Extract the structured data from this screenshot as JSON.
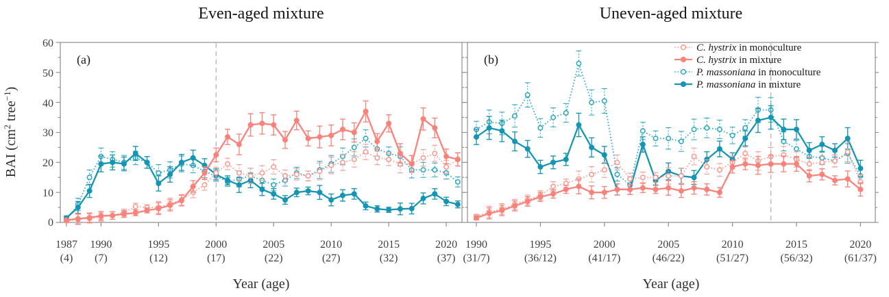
{
  "page": {
    "background": "#ffffff"
  },
  "axes": {
    "y_label": "BAI (cm² tree⁻¹)",
    "y_label_parts": {
      "pre": "BAI (cm",
      "sup1": "2",
      "mid": " tree",
      "sup2": "−1",
      "post": ")"
    },
    "x_label": "Year (age)",
    "y_ticks": [
      0,
      10,
      20,
      30,
      40,
      50,
      60
    ],
    "y_minor_step": 5
  },
  "colors": {
    "salmon_solid": "#F9827A",
    "salmon_open": "#FA9A90",
    "teal_solid": "#1694B4",
    "teal_open": "#2FA9C4",
    "guide_dash": "#b4b4b4",
    "frame": "#8c8c8c",
    "tick_text": "#3f3f3f"
  },
  "legend": {
    "items": [
      {
        "species": "C. hystrix",
        "rest": " in monoculture",
        "color_key": "salmon_open",
        "marker": "open",
        "line": "dotted"
      },
      {
        "species": "C. hystrix",
        "rest": " in mixture",
        "color_key": "salmon_solid",
        "marker": "filled",
        "line": "solid"
      },
      {
        "species": "P. massoniana",
        "rest": " in monoculture",
        "color_key": "teal_open",
        "marker": "open",
        "line": "dotted"
      },
      {
        "species": "P. massoniana",
        "rest": " in mixture",
        "color_key": "teal_solid",
        "marker": "filled",
        "line": "solid"
      }
    ]
  },
  "chart_data": [
    {
      "type": "line",
      "panel_label": "(a)",
      "title": "Even-aged mixture",
      "ylim": [
        0,
        60
      ],
      "grid": false,
      "guide_line_year": 2000,
      "error_bars": "shown, approx ±0.5–4 cm² tree⁻¹",
      "x": [
        1987,
        1988,
        1989,
        1990,
        1991,
        1992,
        1993,
        1994,
        1995,
        1996,
        1997,
        1998,
        1999,
        2000,
        2001,
        2002,
        2003,
        2004,
        2005,
        2006,
        2007,
        2008,
        2009,
        2010,
        2011,
        2012,
        2013,
        2014,
        2015,
        2016,
        2017,
        2018,
        2019,
        2020,
        2021
      ],
      "x_ticks": [
        {
          "year": "1987",
          "age": "(4)"
        },
        {
          "year": "1990",
          "age": "(7)"
        },
        {
          "year": "1995",
          "age": "(12)"
        },
        {
          "year": "2000",
          "age": "(17)"
        },
        {
          "year": "2005",
          "age": "(22)"
        },
        {
          "year": "2010",
          "age": "(27)"
        },
        {
          "year": "2015",
          "age": "(32)"
        },
        {
          "year": "2020",
          "age": "(37)"
        }
      ],
      "series": [
        {
          "name": "P. massoniana in monoculture",
          "color_key": "teal_open",
          "marker": "open",
          "line": "dotted",
          "values": [
            1,
            6,
            15,
            22,
            21,
            20,
            21.5,
            20,
            16.5,
            17.5,
            19.5,
            19,
            17,
            15.5,
            13.5,
            14.5,
            15.5,
            14,
            12.5,
            14,
            16.5,
            15.5,
            17.5,
            19.5,
            22,
            25,
            28,
            24.5,
            23,
            22,
            17.5,
            17.5,
            17.5,
            16.5,
            13.5
          ]
        },
        {
          "name": "P. massoniana in mixture",
          "color_key": "teal_solid",
          "marker": "filled",
          "line": "solid",
          "values": [
            1.5,
            5,
            10.5,
            19.5,
            20,
            19.5,
            23,
            20,
            13,
            16,
            20,
            21.5,
            19,
            16,
            14,
            12.5,
            14,
            11,
            9.5,
            7.5,
            10,
            10.5,
            10,
            7.5,
            9,
            9.5,
            5.5,
            4.5,
            4.2,
            4.5,
            4.6,
            8,
            9.5,
            7,
            6
          ]
        },
        {
          "name": "C. hystrix in monoculture",
          "color_key": "salmon_open",
          "marker": "open",
          "line": "dotted",
          "values": [
            0.5,
            1,
            1.3,
            1.8,
            2.3,
            3.3,
            5.3,
            5,
            5,
            6.2,
            7.5,
            10,
            12.5,
            16.5,
            19.5,
            16.5,
            15.5,
            16.5,
            18.5,
            15.5,
            16,
            15.5,
            17,
            19,
            20,
            21,
            23.5,
            21.5,
            21,
            19.5,
            19.5,
            21.5,
            23,
            18.5,
            21
          ]
        },
        {
          "name": "C. hystrix in mixture",
          "color_key": "salmon_solid",
          "marker": "filled",
          "line": "solid",
          "values": [
            0.8,
            1.2,
            1.6,
            2.2,
            2.3,
            2.8,
            3.2,
            4,
            4.6,
            5.7,
            7.3,
            12,
            16.5,
            22.5,
            28.5,
            26,
            32.5,
            33,
            32.5,
            27.5,
            34,
            28,
            28.5,
            29,
            31,
            30,
            37,
            27,
            33,
            23,
            19.5,
            34.5,
            31.5,
            22,
            21
          ]
        }
      ]
    },
    {
      "type": "line",
      "panel_label": "(b)",
      "title": "Uneven-aged mixture",
      "ylim": [
        0,
        60
      ],
      "grid": false,
      "guide_line_year": 2013,
      "error_bars": "shown, approx ±0.5–4 cm² tree⁻¹",
      "x": [
        1990,
        1991,
        1992,
        1993,
        1994,
        1995,
        1996,
        1997,
        1998,
        1999,
        2000,
        2001,
        2002,
        2003,
        2004,
        2005,
        2006,
        2007,
        2008,
        2009,
        2010,
        2011,
        2012,
        2013,
        2014,
        2015,
        2016,
        2017,
        2018,
        2019,
        2020
      ],
      "x_ticks": [
        {
          "year": "1990",
          "age": "(31/7)"
        },
        {
          "year": "1995",
          "age": "(36/12)"
        },
        {
          "year": "2000",
          "age": "(41/17)"
        },
        {
          "year": "2005",
          "age": "(46/22)"
        },
        {
          "year": "2010",
          "age": "(51/27)"
        },
        {
          "year": "2015",
          "age": "(56/32)"
        },
        {
          "year": "2020",
          "age": "(61/37)"
        }
      ],
      "series": [
        {
          "name": "P. massoniana in monoculture",
          "color_key": "teal_open",
          "marker": "open",
          "line": "dotted",
          "values": [
            31,
            33.5,
            33,
            35.5,
            42.5,
            31.5,
            35,
            36.5,
            53,
            40,
            40.5,
            16,
            12.5,
            30.5,
            28,
            28,
            27,
            31,
            31.5,
            31,
            29,
            31.5,
            37.5,
            37.5,
            27,
            24.5,
            22,
            21.5,
            20.5,
            23,
            15.5
          ]
        },
        {
          "name": "P. massoniana in mixture",
          "color_key": "teal_solid",
          "marker": "filled",
          "line": "solid",
          "values": [
            28.5,
            31.5,
            30.5,
            27,
            24.5,
            18.5,
            20,
            21,
            32.5,
            25,
            22.5,
            11,
            11,
            26,
            14,
            17,
            15.5,
            15,
            21,
            24.5,
            21,
            28,
            34,
            35,
            31,
            31,
            24,
            26,
            24,
            28,
            18
          ]
        },
        {
          "name": "C. hystrix in monoculture",
          "color_key": "salmon_open",
          "marker": "open",
          "line": "dotted",
          "values": [
            2,
            3.5,
            4.5,
            6,
            7.5,
            9,
            12,
            13,
            14.5,
            16,
            17.5,
            20,
            14.5,
            15,
            15,
            15.5,
            15.5,
            22,
            18.5,
            17.5,
            20,
            23,
            20.5,
            22,
            22.5,
            21,
            19.5,
            20,
            20.5,
            23.5,
            13.5
          ]
        },
        {
          "name": "C. hystrix in mixture",
          "color_key": "salmon_solid",
          "marker": "filled",
          "line": "solid",
          "values": [
            1.5,
            3,
            4,
            5.5,
            7,
            8.5,
            9.5,
            11,
            12,
            10,
            10,
            11,
            11,
            11.5,
            11,
            11.5,
            10.5,
            11.5,
            11,
            10,
            18.5,
            19.5,
            19,
            19.5,
            19.5,
            19.5,
            15.5,
            16,
            14,
            14.5,
            11
          ]
        }
      ]
    }
  ]
}
